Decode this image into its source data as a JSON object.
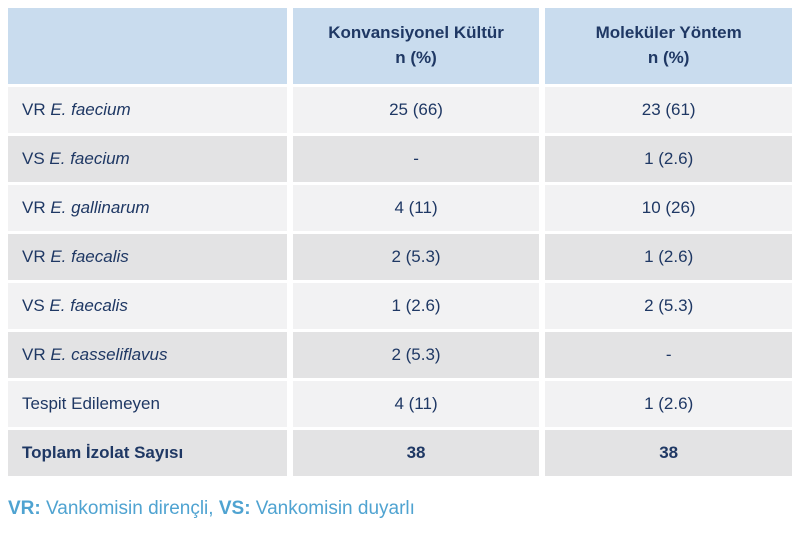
{
  "colors": {
    "header_bg": "#c9dcee",
    "row_odd_bg": "#f2f2f3",
    "row_even_bg": "#e3e3e4",
    "text_navy": "#1f3864",
    "footnote_blue": "#4fa3d1",
    "background": "#ffffff"
  },
  "table": {
    "columns": [
      {
        "label": "Konvansiyonel Kültür",
        "sublabel": "n (%)"
      },
      {
        "label": "Moleküler Yöntem",
        "sublabel": "n (%)"
      }
    ],
    "rows": [
      {
        "prefix": "VR ",
        "species": "E. faecium",
        "conventional": "25 (66)",
        "molecular": "23 (61)"
      },
      {
        "prefix": "VS ",
        "species": "E. faecium",
        "conventional": "-",
        "molecular": "1 (2.6)"
      },
      {
        "prefix": "VR ",
        "species": "E. gallinarum",
        "conventional": "4 (11)",
        "molecular": "10 (26)"
      },
      {
        "prefix": "VR ",
        "species": "E. faecalis",
        "conventional": "2 (5.3)",
        "molecular": "1 (2.6)"
      },
      {
        "prefix": "VS ",
        "species": "E. faecalis",
        "conventional": "1 (2.6)",
        "molecular": "2 (5.3)"
      },
      {
        "prefix": "VR ",
        "species": "E. casseliflavus",
        "conventional": "2 (5.3)",
        "molecular": "-"
      },
      {
        "prefix": "Tespit Edilemeyen",
        "species": "",
        "conventional": "4 (11)",
        "molecular": "1 (2.6)"
      },
      {
        "prefix": "Toplam İzolat Sayısı",
        "species": "",
        "conventional": "38",
        "molecular": "38"
      }
    ]
  },
  "footnote": {
    "vr_abbr": "VR:",
    "vr_text": " Vankomisin dirençli, ",
    "vs_abbr": "VS:",
    "vs_text": " Vankomisin duyarlı"
  },
  "chart_data": {
    "type": "table",
    "title": "",
    "columns": [
      "",
      "Konvansiyonel Kültür n (%)",
      "Moleküler Yöntem n (%)"
    ],
    "rows": [
      [
        "VR E. faecium",
        "25 (66)",
        "23 (61)"
      ],
      [
        "VS E. faecium",
        "-",
        "1 (2.6)"
      ],
      [
        "VR E. gallinarum",
        "4 (11)",
        "10 (26)"
      ],
      [
        "VR E. faecalis",
        "2 (5.3)",
        "1 (2.6)"
      ],
      [
        "VS E. faecalis",
        "1 (2.6)",
        "2 (5.3)"
      ],
      [
        "VR E. casseliflavus",
        "2 (5.3)",
        "-"
      ],
      [
        "Tespit Edilemeyen",
        "4 (11)",
        "1 (2.6)"
      ],
      [
        "Toplam İzolat Sayısı",
        "38",
        "38"
      ]
    ],
    "footnote": "VR: Vankomisin dirençli, VS: Vankomisin duyarlı",
    "layout": {
      "header_row_shaded": true,
      "alternating_rows": true,
      "total_row_bold": true
    }
  }
}
